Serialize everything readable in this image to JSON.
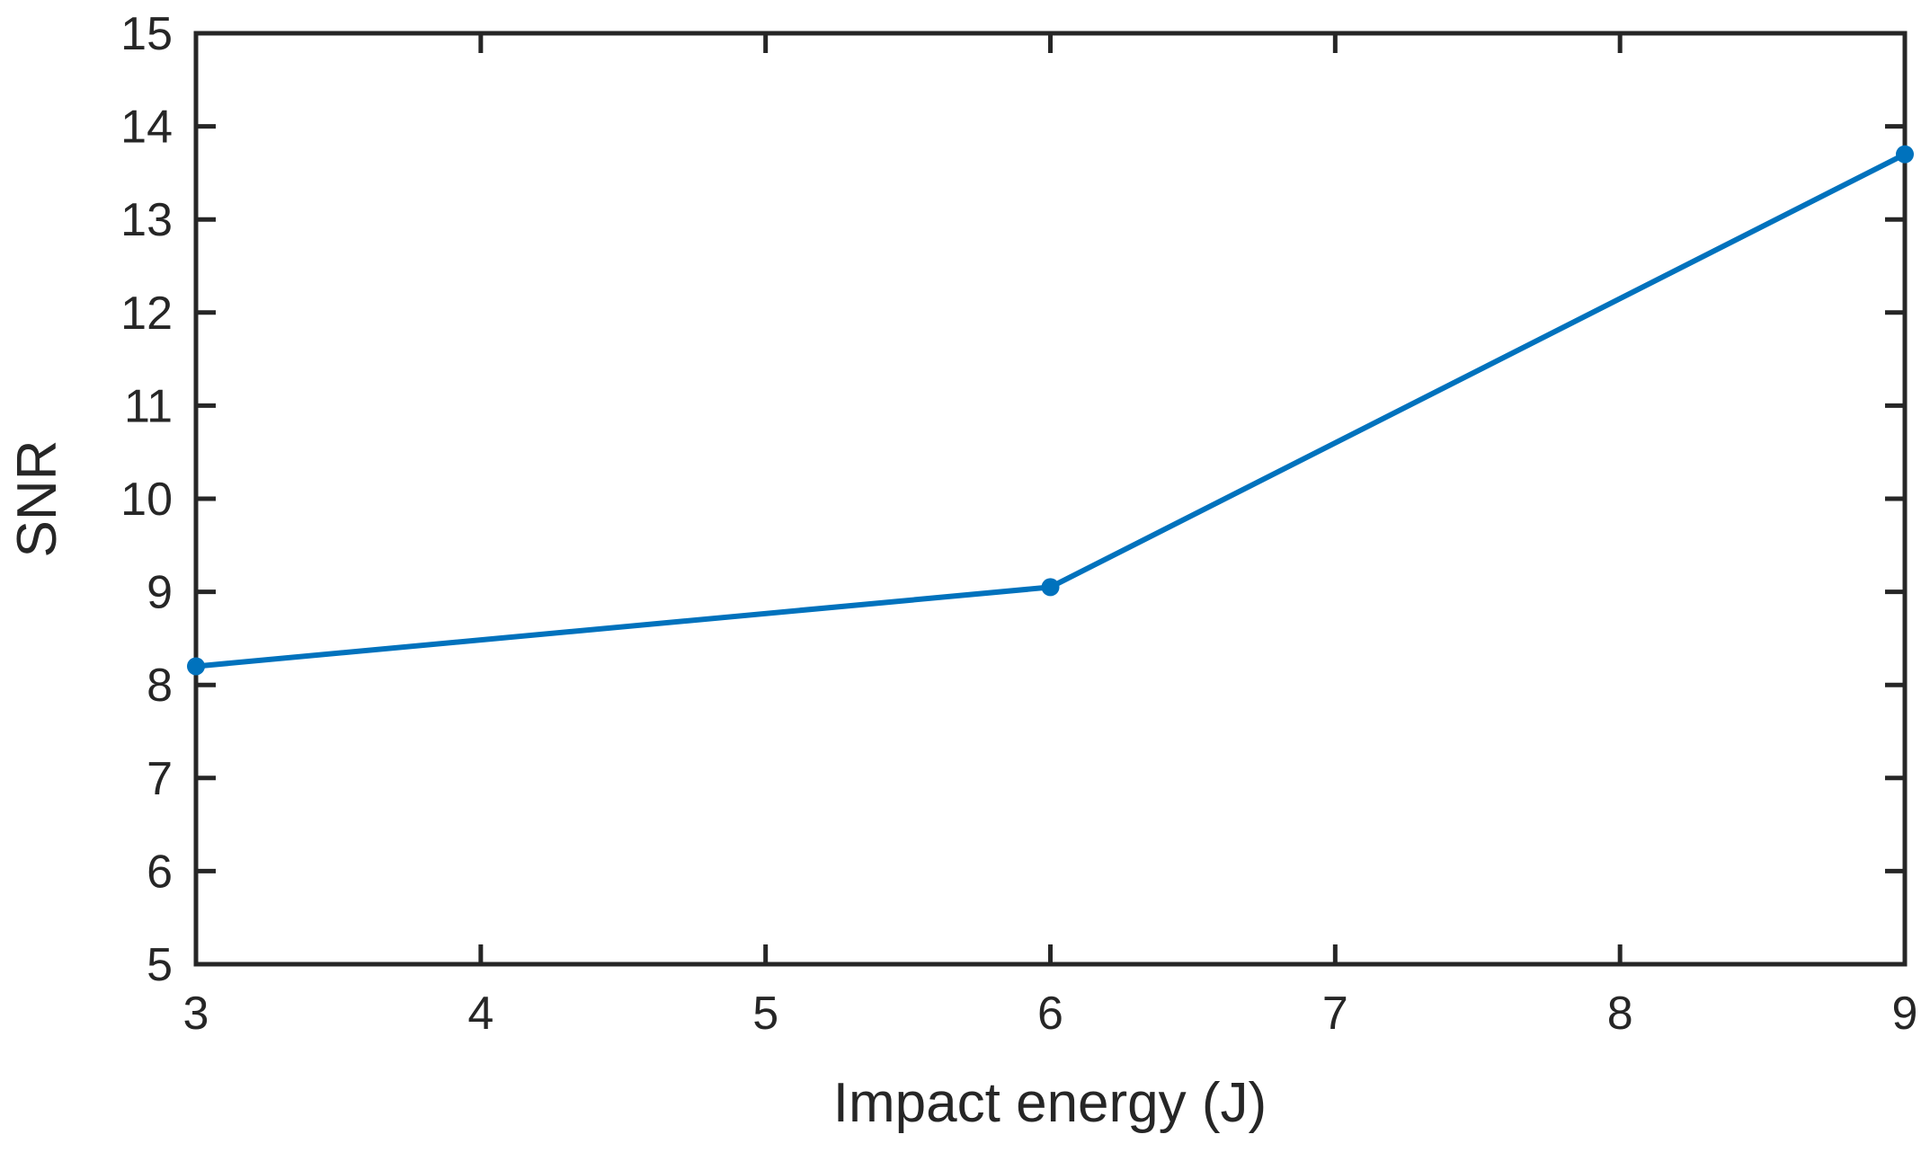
{
  "chart_data": {
    "type": "line",
    "title": "",
    "xlabel": "Impact energy (J)",
    "ylabel": "SNR",
    "x": [
      3,
      6,
      9
    ],
    "series": [
      {
        "name": "SNR",
        "values": [
          8.2,
          9.05,
          13.7
        ]
      }
    ],
    "xlim": [
      3,
      9
    ],
    "ylim": [
      5,
      15
    ],
    "xticks": [
      3,
      4,
      5,
      6,
      7,
      8,
      9
    ],
    "yticks": [
      5,
      6,
      7,
      8,
      9,
      10,
      11,
      12,
      13,
      14,
      15
    ],
    "grid": false,
    "legend_position": "none",
    "tick_direction": "in",
    "box": true,
    "line_color": "#0072BD",
    "axis_color": "#262626",
    "marker": "filled-circle"
  }
}
